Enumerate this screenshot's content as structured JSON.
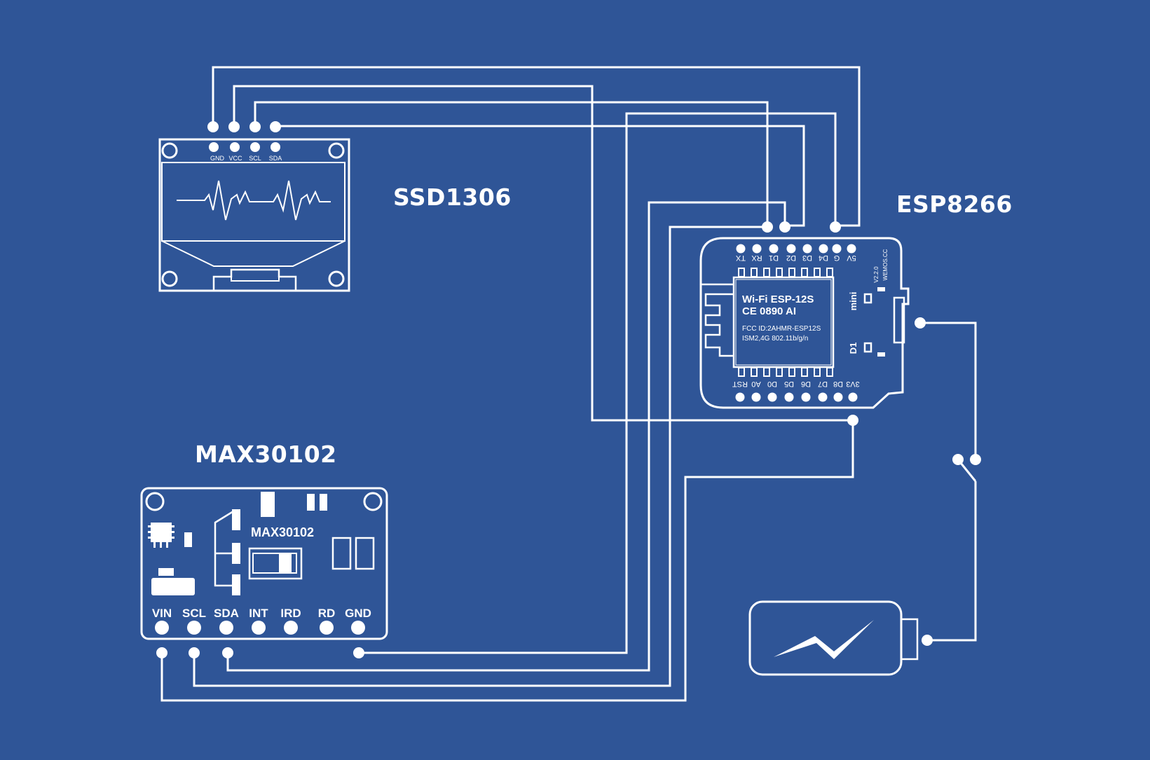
{
  "colors": {
    "background": "#2f5597",
    "line": "#ffffff"
  },
  "labels": {
    "oled_title": "SSD1306",
    "esp_title": "ESP8266",
    "max_title": "MAX30102"
  },
  "oled": {
    "pins": [
      "GND",
      "VCC",
      "SCL",
      "SDA"
    ]
  },
  "esp": {
    "top_pins": [
      "TX",
      "RX",
      "D1",
      "D2",
      "D3",
      "D4",
      "G",
      "5V"
    ],
    "bottom_pins": [
      "RST",
      "A0",
      "D0",
      "D5",
      "D6",
      "D7",
      "D8",
      "3V3"
    ],
    "module_line1": "Wi-Fi ESP-12S",
    "module_line2": "CE 0890 AI",
    "fcc_line1": "FCC ID:2AHMR-ESP12S",
    "fcc_line2": "ISM2,4G 802.11b/g/n",
    "side_mini": "mini",
    "side_d1": "D1",
    "version": "V2.2.0",
    "brand": "WEMOS.CC"
  },
  "max": {
    "chip_label": "MAX30102",
    "pins": [
      "VIN",
      "SCL",
      "SDA",
      "INT",
      "IRD",
      "RD",
      "GND"
    ]
  },
  "battery": {
    "icon": "lightning-bolt-icon"
  }
}
